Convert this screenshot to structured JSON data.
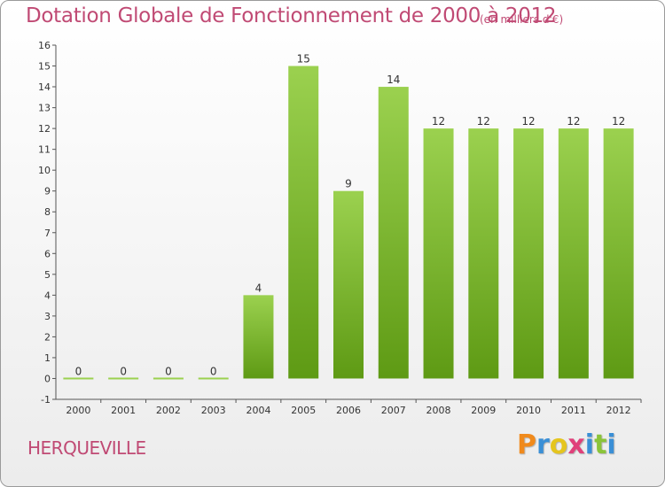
{
  "header": {
    "title": "Dotation Globale de Fonctionnement de 2000 à 2012",
    "subtitle": "(en milliers d'€)"
  },
  "commune": "HERQUEVILLE",
  "logo": {
    "letters": [
      {
        "char": "P",
        "color": "#f08a1c"
      },
      {
        "char": "r",
        "color": "#3a8fd6"
      },
      {
        "char": "o",
        "color": "#e5c51e"
      },
      {
        "char": "x",
        "color": "#e0407a"
      },
      {
        "char": "i",
        "color": "#3a8fd6"
      },
      {
        "char": "t",
        "color": "#8bc43a"
      },
      {
        "char": "i",
        "color": "#3a8fd6"
      }
    ]
  },
  "colors": {
    "bar_light": "#9bd14f",
    "bar_dark": "#5e9a14",
    "title": "#c04a74"
  },
  "chart_data": {
    "type": "bar",
    "categories": [
      "2000",
      "2001",
      "2002",
      "2003",
      "2004",
      "2005",
      "2006",
      "2007",
      "2008",
      "2009",
      "2010",
      "2011",
      "2012"
    ],
    "values": [
      0,
      0,
      0,
      0,
      4,
      15,
      9,
      14,
      12,
      12,
      12,
      12,
      12
    ],
    "data_labels": [
      "0",
      "0",
      "0",
      "0",
      "4",
      "15",
      "9",
      "14",
      "12",
      "12",
      "12",
      "12",
      "12"
    ],
    "y_ticks": [
      -1,
      0,
      1,
      2,
      3,
      4,
      5,
      6,
      7,
      8,
      9,
      10,
      11,
      12,
      13,
      14,
      15,
      16
    ],
    "ylim": [
      -1,
      16
    ],
    "grid": false
  }
}
